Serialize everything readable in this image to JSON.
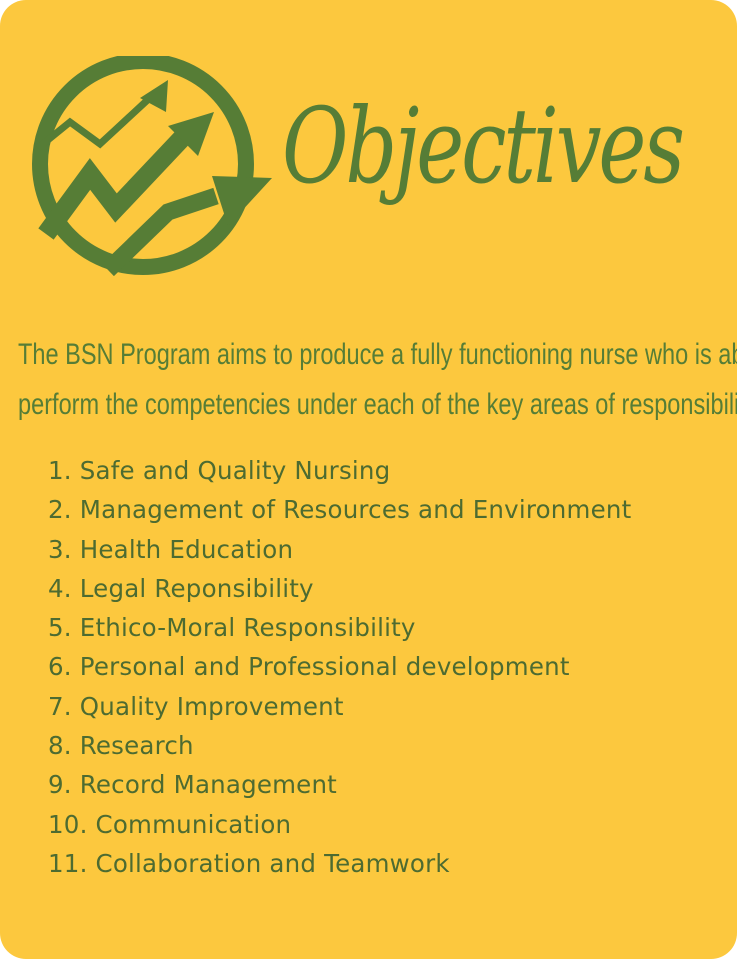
{
  "colors": {
    "background": "#fcc83e",
    "accent": "#567d36",
    "list_text": "#4d6b31"
  },
  "logo": {
    "icon": "trending-up-arrows-icon"
  },
  "title": "Objectives",
  "intro": {
    "line1": "The BSN Program aims to produce a fully functioning nurse who is able to",
    "line2": "perform the competencies under each of the key areas of responsibility."
  },
  "objectives": [
    "1. Safe and Quality Nursing",
    "2. Management of Resources and Environment",
    "3. Health Education",
    "4. Legal Reponsibility",
    "5. Ethico-Moral Responsibility",
    "6. Personal and Professional development",
    "7. Quality Improvement",
    "8. Research",
    "9. Record Management",
    "10. Communication",
    "11. Collaboration and Teamwork"
  ]
}
